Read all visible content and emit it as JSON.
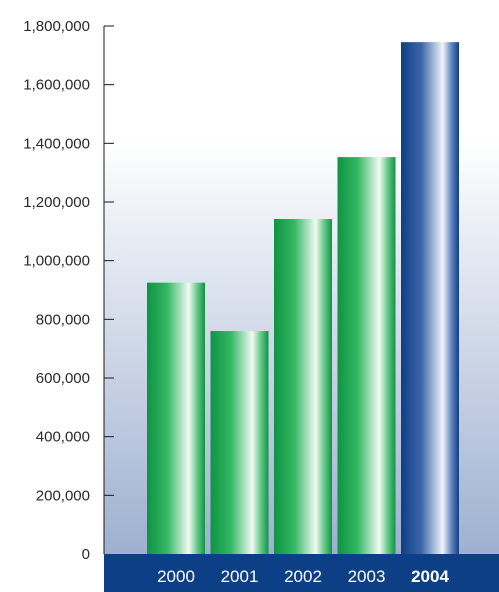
{
  "chart_data": {
    "type": "bar",
    "categories": [
      "2000",
      "2001",
      "2002",
      "2003",
      "2004"
    ],
    "values": [
      925000,
      760000,
      1142000,
      1353000,
      1745000
    ],
    "highlight_index": 4,
    "ylim": [
      0,
      1800000
    ],
    "yticks": [
      0,
      200000,
      400000,
      600000,
      800000,
      1000000,
      1200000,
      1400000,
      1600000,
      1800000
    ],
    "ytick_labels": [
      "0",
      "200,000",
      "400,000",
      "600,000",
      "800,000",
      "1,000,000",
      "1,200,000",
      "1,400,000",
      "1,600,000",
      "1,800,000"
    ],
    "grid": false,
    "colors": {
      "bar": "#1a9e50",
      "highlight_bar": "#1d4f94",
      "axis_band": "#0d3f86",
      "background_top": "#ffffff",
      "background_bottom": "#9eb0d0"
    }
  }
}
